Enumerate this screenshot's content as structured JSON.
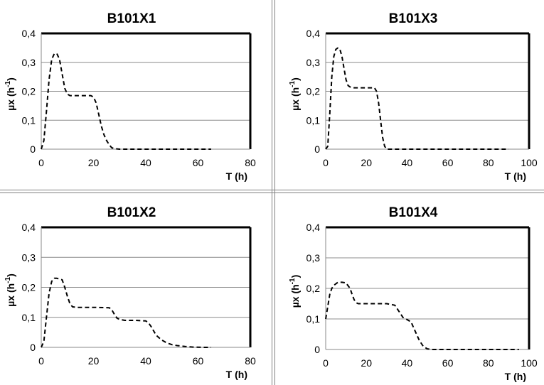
{
  "chart_data": [
    {
      "type": "line",
      "title": "B101X1",
      "xlabel": "T (h)",
      "ylabel": "µx (h-1)",
      "ylabel_main": "µx (h",
      "ylabel_sup": "-1",
      "ylabel_close": ")",
      "xlim": [
        0,
        80
      ],
      "ylim": [
        0,
        0.4
      ],
      "xticks": [
        "0",
        "20",
        "40",
        "60",
        "80"
      ],
      "yticks": [
        "0",
        "0,1",
        "0,2",
        "0,3",
        "0,4"
      ],
      "grid": "horizontal",
      "line_style": "dashed",
      "x": [
        0,
        1,
        2,
        3,
        4,
        5,
        6,
        7,
        8,
        9,
        10,
        11,
        12,
        14,
        16,
        18,
        19,
        20,
        21,
        22,
        23,
        24,
        25,
        26,
        27,
        28,
        30,
        40,
        50,
        60,
        65
      ],
      "y": [
        0,
        0.03,
        0.13,
        0.24,
        0.31,
        0.33,
        0.33,
        0.31,
        0.26,
        0.21,
        0.19,
        0.185,
        0.185,
        0.185,
        0.185,
        0.185,
        0.185,
        0.18,
        0.16,
        0.12,
        0.08,
        0.05,
        0.03,
        0.015,
        0.005,
        0.002,
        0,
        0,
        0,
        0,
        0
      ]
    },
    {
      "type": "line",
      "title": "B101X3",
      "xlabel": "T (h)",
      "ylabel": "µx (h-1)",
      "ylabel_main": "µx (h",
      "ylabel_sup": "-1",
      "ylabel_close": ")",
      "xlim": [
        0,
        100
      ],
      "ylim": [
        0,
        0.4
      ],
      "xticks": [
        "0",
        "20",
        "40",
        "60",
        "80",
        "100"
      ],
      "yticks": [
        "0",
        "0,1",
        "0,2",
        "0,3",
        "0,4"
      ],
      "grid": "horizontal",
      "line_style": "dashed",
      "x": [
        0,
        1,
        2,
        3,
        4,
        5,
        6,
        7,
        8,
        9,
        10,
        11,
        12,
        14,
        16,
        20,
        24,
        25,
        26,
        27,
        28,
        29,
        30,
        40,
        60,
        80,
        90
      ],
      "y": [
        0,
        0.01,
        0.12,
        0.25,
        0.32,
        0.345,
        0.35,
        0.345,
        0.32,
        0.28,
        0.24,
        0.22,
        0.215,
        0.212,
        0.212,
        0.212,
        0.212,
        0.2,
        0.16,
        0.1,
        0.04,
        0.01,
        0,
        0,
        0,
        0,
        0
      ]
    },
    {
      "type": "line",
      "title": "B101X2",
      "xlabel": "T (h)",
      "ylabel": "µx (h-1)",
      "ylabel_main": "µx (h",
      "ylabel_sup": "-1",
      "ylabel_close": ")",
      "xlim": [
        0,
        80
      ],
      "ylim": [
        0,
        0.4
      ],
      "xticks": [
        "0",
        "20",
        "40",
        "60",
        "80"
      ],
      "yticks": [
        "0",
        "0,1",
        "0,2",
        "0,3",
        "0,4"
      ],
      "grid": "horizontal",
      "line_style": "dashed",
      "x": [
        0,
        1,
        2,
        3,
        4,
        5,
        6,
        8,
        9,
        10,
        11,
        12,
        14,
        18,
        22,
        26,
        27,
        28,
        29,
        30,
        32,
        36,
        40,
        41,
        42,
        43,
        44,
        46,
        48,
        50,
        52,
        55,
        58,
        62,
        65
      ],
      "y": [
        0,
        0.02,
        0.1,
        0.18,
        0.22,
        0.23,
        0.23,
        0.225,
        0.2,
        0.17,
        0.145,
        0.135,
        0.133,
        0.133,
        0.133,
        0.132,
        0.125,
        0.11,
        0.097,
        0.093,
        0.09,
        0.09,
        0.088,
        0.082,
        0.07,
        0.055,
        0.04,
        0.025,
        0.015,
        0.009,
        0.006,
        0.003,
        0.001,
        0,
        0
      ]
    },
    {
      "type": "line",
      "title": "B101X4",
      "xlabel": "T (h)",
      "ylabel": "µx (h-1)",
      "ylabel_main": "µx (h",
      "ylabel_sup": "-1",
      "ylabel_close": ")",
      "xlim": [
        0,
        100
      ],
      "ylim": [
        0,
        0.4
      ],
      "xticks": [
        "0",
        "20",
        "40",
        "60",
        "80",
        "100"
      ],
      "yticks": [
        "0",
        "0,1",
        "0,2",
        "0,3",
        "0,4"
      ],
      "grid": "horizontal",
      "line_style": "dashed",
      "x": [
        0,
        1,
        2,
        3,
        4,
        5,
        6,
        8,
        10,
        12,
        13,
        14,
        15,
        16,
        18,
        24,
        30,
        34,
        36,
        38,
        40,
        42,
        44,
        46,
        48,
        50,
        52,
        60,
        80,
        95
      ],
      "y": [
        0.1,
        0.14,
        0.18,
        0.2,
        0.21,
        0.215,
        0.22,
        0.22,
        0.218,
        0.2,
        0.18,
        0.163,
        0.153,
        0.15,
        0.15,
        0.15,
        0.15,
        0.145,
        0.125,
        0.105,
        0.098,
        0.09,
        0.06,
        0.03,
        0.01,
        0.002,
        0,
        0,
        0,
        0
      ]
    }
  ]
}
